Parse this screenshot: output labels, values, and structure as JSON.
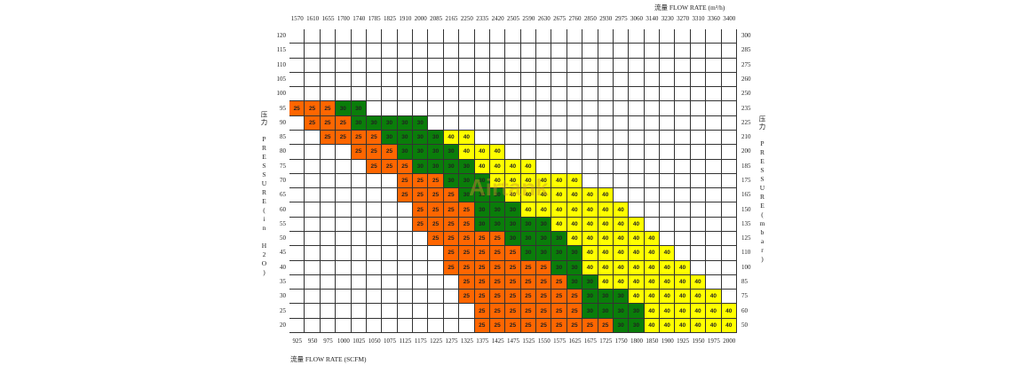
{
  "chart_data": {
    "type": "heatmap",
    "top_axis_title": "流量 FLOW RATE (m³/h)",
    "bottom_axis_title": "流量 FLOW RATE (SCFM)",
    "left_axis_title": "压力 PRESSURE(in H2O)",
    "right_axis_title": "压力 PRESSURE(mbar)",
    "watermark": "Airtank",
    "x_top": [
      "1570",
      "1610",
      "1655",
      "1700",
      "1740",
      "1785",
      "1825",
      "1910",
      "2000",
      "2085",
      "2165",
      "2250",
      "2335",
      "2420",
      "2505",
      "2590",
      "2630",
      "2675",
      "2760",
      "2850",
      "2930",
      "2975",
      "3060",
      "3140",
      "3230",
      "3270",
      "3310",
      "3360",
      "3400"
    ],
    "x_bottom": [
      "925",
      "950",
      "975",
      "1000",
      "1025",
      "1050",
      "1075",
      "1125",
      "1175",
      "1225",
      "1275",
      "1325",
      "1375",
      "1425",
      "1475",
      "1525",
      "1550",
      "1575",
      "1625",
      "1675",
      "1725",
      "1750",
      "1800",
      "1850",
      "1900",
      "1925",
      "1950",
      "1975",
      "2000"
    ],
    "y_left": [
      "120",
      "115",
      "110",
      "105",
      "100",
      "95",
      "90",
      "85",
      "80",
      "75",
      "70",
      "65",
      "60",
      "55",
      "50",
      "45",
      "40",
      "35",
      "30",
      "25",
      "20"
    ],
    "y_right": [
      "300",
      "285",
      "275",
      "260",
      "250",
      "235",
      "225",
      "210",
      "200",
      "185",
      "175",
      "165",
      "150",
      "135",
      "125",
      "110",
      "100",
      "85",
      "75",
      "60",
      "50"
    ],
    "colors": {
      "25": "#ff6600",
      "30": "#0a7d0a",
      "40": "#ffff00",
      "empty": "#ffffff"
    },
    "cells": [
      [
        0,
        0,
        0,
        0,
        0,
        0,
        0,
        0,
        0,
        0,
        0,
        0,
        0,
        0,
        0,
        0,
        0,
        0,
        0,
        0,
        0,
        0,
        0,
        0,
        0,
        0,
        0,
        0,
        0
      ],
      [
        0,
        0,
        0,
        0,
        0,
        0,
        0,
        0,
        0,
        0,
        0,
        0,
        0,
        0,
        0,
        0,
        0,
        0,
        0,
        0,
        0,
        0,
        0,
        0,
        0,
        0,
        0,
        0,
        0
      ],
      [
        0,
        0,
        0,
        0,
        0,
        0,
        0,
        0,
        0,
        0,
        0,
        0,
        0,
        0,
        0,
        0,
        0,
        0,
        0,
        0,
        0,
        0,
        0,
        0,
        0,
        0,
        0,
        0,
        0
      ],
      [
        0,
        0,
        0,
        0,
        0,
        0,
        0,
        0,
        0,
        0,
        0,
        0,
        0,
        0,
        0,
        0,
        0,
        0,
        0,
        0,
        0,
        0,
        0,
        0,
        0,
        0,
        0,
        0,
        0
      ],
      [
        0,
        0,
        0,
        0,
        0,
        0,
        0,
        0,
        0,
        0,
        0,
        0,
        0,
        0,
        0,
        0,
        0,
        0,
        0,
        0,
        0,
        0,
        0,
        0,
        0,
        0,
        0,
        0,
        0
      ],
      [
        25,
        25,
        25,
        30,
        30,
        0,
        0,
        0,
        0,
        0,
        0,
        0,
        0,
        0,
        0,
        0,
        0,
        0,
        0,
        0,
        0,
        0,
        0,
        0,
        0,
        0,
        0,
        0,
        0
      ],
      [
        0,
        25,
        25,
        25,
        30,
        30,
        30,
        30,
        30,
        0,
        0,
        0,
        0,
        0,
        0,
        0,
        0,
        0,
        0,
        0,
        0,
        0,
        0,
        0,
        0,
        0,
        0,
        0,
        0
      ],
      [
        0,
        0,
        25,
        25,
        25,
        25,
        30,
        30,
        30,
        30,
        40,
        40,
        0,
        0,
        0,
        0,
        0,
        0,
        0,
        0,
        0,
        0,
        0,
        0,
        0,
        0,
        0,
        0,
        0
      ],
      [
        0,
        0,
        0,
        0,
        25,
        25,
        25,
        30,
        30,
        30,
        30,
        40,
        40,
        40,
        0,
        0,
        0,
        0,
        0,
        0,
        0,
        0,
        0,
        0,
        0,
        0,
        0,
        0,
        0
      ],
      [
        0,
        0,
        0,
        0,
        0,
        25,
        25,
        25,
        30,
        30,
        30,
        30,
        40,
        40,
        40,
        40,
        0,
        0,
        0,
        0,
        0,
        0,
        0,
        0,
        0,
        0,
        0,
        0,
        0
      ],
      [
        0,
        0,
        0,
        0,
        0,
        0,
        0,
        25,
        25,
        25,
        30,
        30,
        30,
        40,
        40,
        40,
        40,
        40,
        40,
        0,
        0,
        0,
        0,
        0,
        0,
        0,
        0,
        0,
        0
      ],
      [
        0,
        0,
        0,
        0,
        0,
        0,
        0,
        25,
        25,
        25,
        25,
        30,
        30,
        30,
        40,
        40,
        40,
        40,
        40,
        40,
        40,
        0,
        0,
        0,
        0,
        0,
        0,
        0,
        0
      ],
      [
        0,
        0,
        0,
        0,
        0,
        0,
        0,
        0,
        25,
        25,
        25,
        25,
        30,
        30,
        30,
        40,
        40,
        40,
        40,
        40,
        40,
        40,
        0,
        0,
        0,
        0,
        0,
        0,
        0
      ],
      [
        0,
        0,
        0,
        0,
        0,
        0,
        0,
        0,
        25,
        25,
        25,
        25,
        30,
        30,
        30,
        30,
        30,
        40,
        40,
        40,
        40,
        40,
        40,
        0,
        0,
        0,
        0,
        0,
        0
      ],
      [
        0,
        0,
        0,
        0,
        0,
        0,
        0,
        0,
        0,
        25,
        25,
        25,
        25,
        25,
        30,
        30,
        30,
        30,
        40,
        40,
        40,
        40,
        40,
        40,
        0,
        0,
        0,
        0,
        0
      ],
      [
        0,
        0,
        0,
        0,
        0,
        0,
        0,
        0,
        0,
        0,
        25,
        25,
        25,
        25,
        25,
        30,
        30,
        30,
        30,
        40,
        40,
        40,
        40,
        40,
        40,
        0,
        0,
        0,
        0
      ],
      [
        0,
        0,
        0,
        0,
        0,
        0,
        0,
        0,
        0,
        0,
        25,
        25,
        25,
        25,
        25,
        25,
        25,
        30,
        30,
        40,
        40,
        40,
        40,
        40,
        40,
        40,
        0,
        0,
        0
      ],
      [
        0,
        0,
        0,
        0,
        0,
        0,
        0,
        0,
        0,
        0,
        0,
        25,
        25,
        25,
        25,
        25,
        25,
        25,
        30,
        30,
        40,
        40,
        40,
        40,
        40,
        40,
        40,
        0,
        0
      ],
      [
        0,
        0,
        0,
        0,
        0,
        0,
        0,
        0,
        0,
        0,
        0,
        25,
        25,
        25,
        25,
        25,
        25,
        25,
        25,
        30,
        30,
        30,
        40,
        40,
        40,
        40,
        40,
        40,
        0
      ],
      [
        0,
        0,
        0,
        0,
        0,
        0,
        0,
        0,
        0,
        0,
        0,
        0,
        25,
        25,
        25,
        25,
        25,
        25,
        25,
        30,
        30,
        30,
        30,
        40,
        40,
        40,
        40,
        40,
        40
      ],
      [
        0,
        0,
        0,
        0,
        0,
        0,
        0,
        0,
        0,
        0,
        0,
        0,
        25,
        25,
        25,
        25,
        25,
        25,
        25,
        25,
        25,
        30,
        30,
        40,
        40,
        40,
        40,
        40,
        40
      ]
    ]
  }
}
